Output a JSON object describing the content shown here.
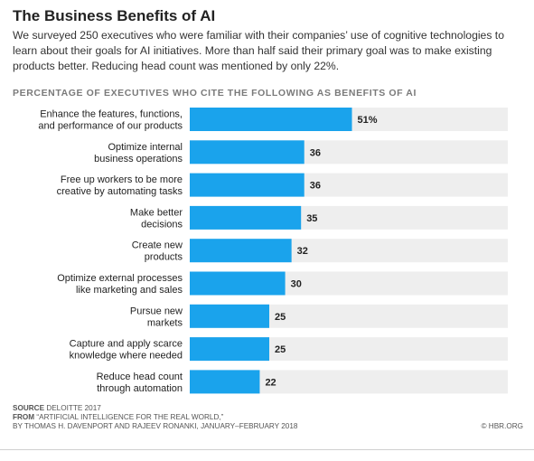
{
  "header": {
    "title": "The Business Benefits of AI",
    "subtitle": "We surveyed 250 executives who were familiar with their companies’ use of cognitive technologies to learn about their goals for AI initiatives. More than half said their primary goal was to make existing products better. Reducing head count was mentioned by only 22%.",
    "chart_heading": "PERCENTAGE OF EXECUTIVES WHO CITE THE FOLLOWING AS BENEFITS OF AI"
  },
  "chart_data": {
    "type": "bar",
    "orientation": "horizontal",
    "categories": [
      [
        "Enhance the features, functions,",
        "and performance of our products"
      ],
      [
        "Optimize internal",
        "business operations"
      ],
      [
        "Free up workers to be more",
        "creative by automating tasks"
      ],
      [
        "Make better",
        "decisions"
      ],
      [
        "Create new",
        "products"
      ],
      [
        "Optimize external processes",
        "like marketing and sales"
      ],
      [
        "Pursue new",
        "markets"
      ],
      [
        "Capture and apply scarce",
        "knowledge where needed"
      ],
      [
        "Reduce head count",
        "through automation"
      ]
    ],
    "values": [
      51,
      36,
      36,
      35,
      32,
      30,
      25,
      25,
      22
    ],
    "value_labels": [
      "51%",
      "36",
      "36",
      "35",
      "32",
      "30",
      "25",
      "25",
      "22"
    ],
    "xlim": [
      0,
      100
    ],
    "colors": {
      "bar": "#1aa3ec",
      "track": "#eeeeee",
      "label": "#222222"
    },
    "grid": false,
    "legend": "none"
  },
  "footer": {
    "source_key": "SOURCE",
    "source_value": "DELOITTE 2017",
    "from_key": "FROM",
    "from_value": "“ARTIFICIAL INTELLIGENCE FOR THE REAL WORLD,”",
    "byline": "BY THOMAS H. DAVENPORT AND RAJEEV RONANKI, JANUARY–FEBRUARY 2018",
    "copyright": "© HBR.ORG"
  }
}
